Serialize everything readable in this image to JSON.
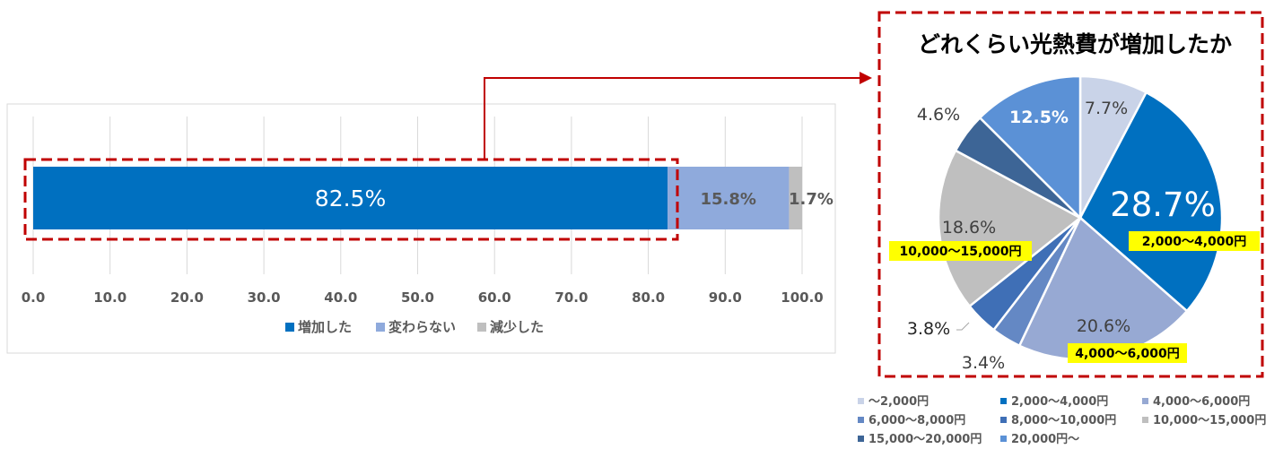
{
  "colors": {
    "increased": "#0070C0",
    "unchanged": "#8FAADC",
    "decreased": "#BFBFBF",
    "highlight_border": "#C00000",
    "label_highlight": "#FFFF00"
  },
  "chart_data": [
    {
      "type": "bar",
      "orientation": "horizontal",
      "stacked": true,
      "title": "",
      "series": [
        {
          "name": "増加した",
          "value": 82.5,
          "label": "82.5%",
          "color": "#0070C0"
        },
        {
          "name": "変わらない",
          "value": 15.8,
          "label": "15.8%",
          "color": "#8FAADC"
        },
        {
          "name": "減少した",
          "value": 1.7,
          "label": "1.7%",
          "color": "#BFBFBF"
        }
      ],
      "xlim": [
        0,
        100
      ],
      "xticks": [
        "0.0",
        "10.0",
        "20.0",
        "30.0",
        "40.0",
        "50.0",
        "60.0",
        "70.0",
        "80.0",
        "90.0",
        "100.0"
      ],
      "grid": true,
      "legend": "bottom"
    },
    {
      "type": "pie",
      "title": "どれくらい光熱費が増加したか",
      "slices": [
        {
          "name": "～2,000円",
          "value": 7.7,
          "label": "7.7%",
          "color": "#C9D3E8"
        },
        {
          "name": "2,000～4,000円",
          "value": 28.7,
          "label": "28.7%",
          "color": "#0070C0",
          "callout": "2,000～4,000円"
        },
        {
          "name": "4,000～6,000円",
          "value": 20.6,
          "label": "20.6%",
          "color": "#97A9D3",
          "callout": "4,000～6,000円"
        },
        {
          "name": "6,000～8,000円",
          "value": 3.4,
          "label": "3.4%",
          "color": "#6488C4"
        },
        {
          "name": "8,000～10,000円",
          "value": 3.8,
          "label": "3.8%",
          "color": "#3F6FB6"
        },
        {
          "name": "10,000～15,000円",
          "value": 18.6,
          "label": "18.6%",
          "color": "#BFBFBF",
          "callout": "10,000～15,000円"
        },
        {
          "name": "15,000～20,000円",
          "value": 4.6,
          "label": "4.6%",
          "color": "#3D6596"
        },
        {
          "name": "20,000円～",
          "value": 12.5,
          "label": "12.5%",
          "color": "#5B91D6"
        }
      ],
      "legend": "bottom"
    }
  ]
}
